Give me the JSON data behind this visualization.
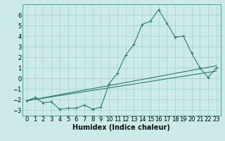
{
  "xlabel": "Humidex (Indice chaleur)",
  "ylabel": "",
  "bg_color": "#cceae8",
  "grid_color": "#aad4d0",
  "line_color": "#2d7a6e",
  "xlim": [
    -0.5,
    23.5
  ],
  "ylim": [
    -3.5,
    7.0
  ],
  "yticks": [
    -3,
    -2,
    -1,
    0,
    1,
    2,
    3,
    4,
    5,
    6
  ],
  "xticks": [
    0,
    1,
    2,
    3,
    4,
    5,
    6,
    7,
    8,
    9,
    10,
    11,
    12,
    13,
    14,
    15,
    16,
    17,
    18,
    19,
    20,
    21,
    22,
    23
  ],
  "line1_x": [
    0,
    1,
    2,
    3,
    4,
    5,
    6,
    7,
    8,
    9,
    10,
    11,
    12,
    13,
    14,
    15,
    16,
    17,
    18,
    19,
    20,
    21,
    22,
    23
  ],
  "line1_y": [
    -2.1,
    -1.8,
    -2.3,
    -2.2,
    -2.9,
    -2.8,
    -2.8,
    -2.5,
    -2.9,
    -2.7,
    -0.5,
    0.5,
    2.2,
    3.2,
    5.1,
    5.4,
    6.5,
    5.2,
    3.9,
    4.0,
    2.4,
    1.0,
    0.1,
    1.0
  ],
  "line2_x": [
    0,
    23
  ],
  "line2_y": [
    -2.1,
    0.7
  ],
  "line3_x": [
    0,
    23
  ],
  "line3_y": [
    -2.1,
    1.2
  ],
  "font_size": 6.0,
  "xlabel_fontsize": 7.0
}
